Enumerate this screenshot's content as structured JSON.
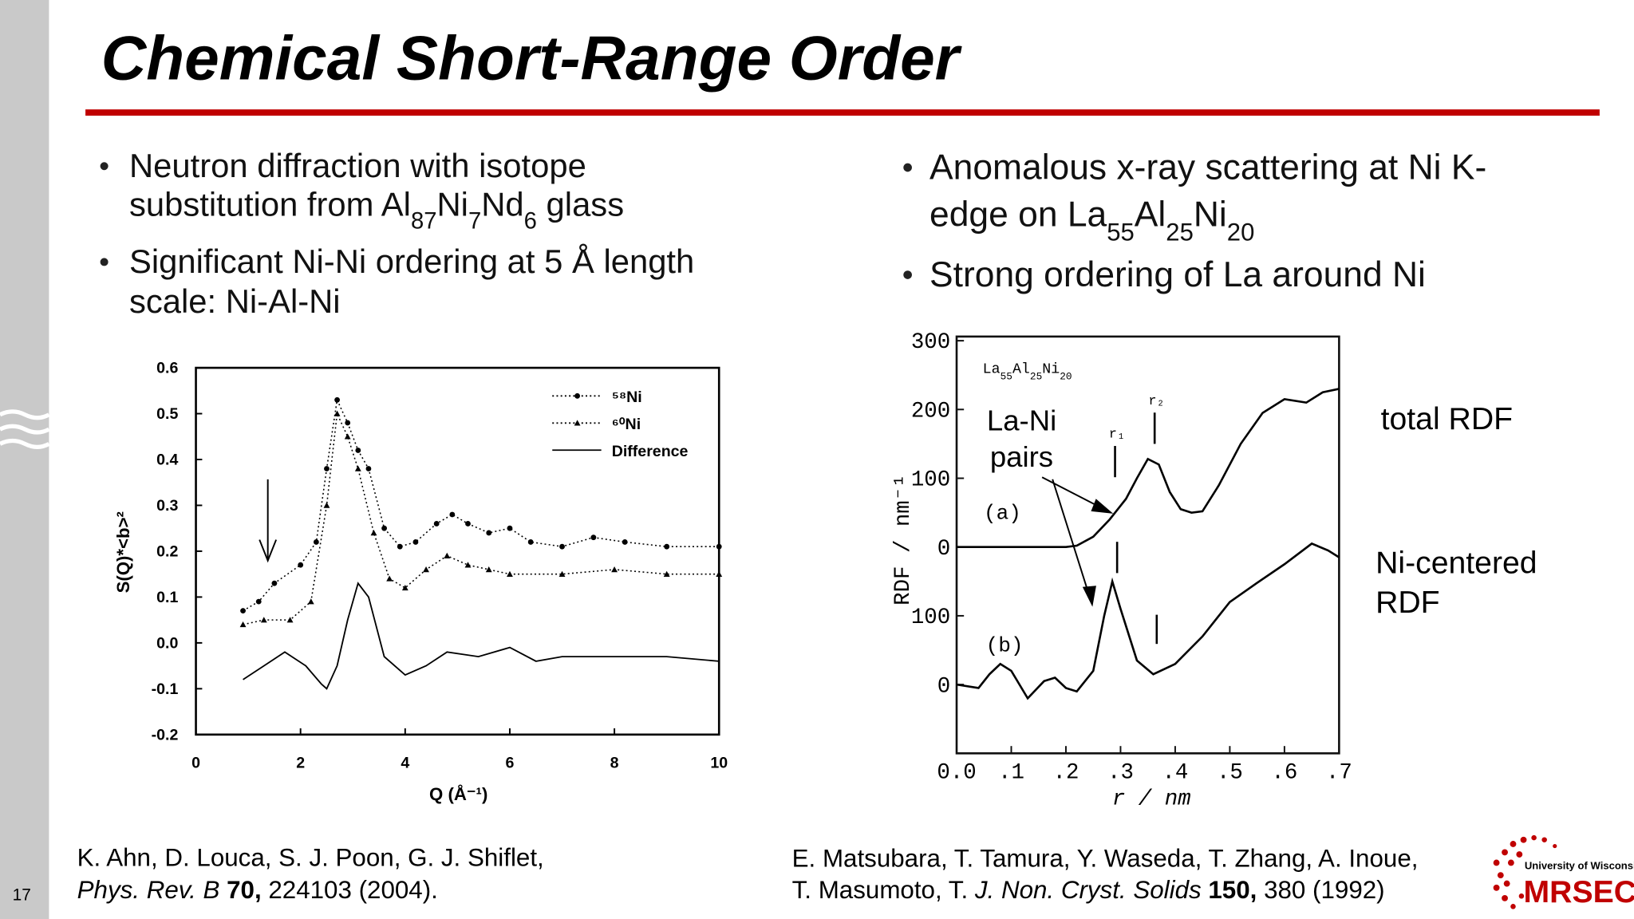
{
  "slide_number": "17",
  "title": "Chemical Short-Range Order",
  "left": {
    "bullets": [
      [
        [
          "Neutron diffraction with isotope"
        ],
        [
          "substitution from Al",
          {
            "sub": "87"
          },
          "Ni",
          {
            "sub": "7"
          },
          "Nd",
          {
            "sub": "6"
          },
          " glass"
        ]
      ],
      [
        [
          "Significant Ni-Ni ordering at 5 Å length"
        ],
        [
          "scale: Ni-Al-Ni"
        ]
      ]
    ],
    "citation": [
      [
        "K. Ahn, D. Louca, S. J. Poon, G. J. Shiflet,"
      ],
      [
        {
          "i": "Phys. Rev. B"
        },
        {
          "b": " 70,"
        },
        " 224103 (2004)."
      ]
    ]
  },
  "right": {
    "bullets": [
      [
        [
          "Anomalous x-ray scattering at Ni K-"
        ],
        [
          "edge on La",
          {
            "sub": "55"
          },
          "Al",
          {
            "sub": "25"
          },
          "Ni",
          {
            "sub": "20"
          }
        ]
      ],
      [
        [
          "Strong ordering of La around Ni"
        ]
      ]
    ],
    "callouts": {
      "la_ni": [
        "La-Ni",
        "pairs"
      ],
      "total": "total RDF",
      "ni_centered": [
        "Ni-centered",
        "RDF"
      ]
    },
    "citation": [
      [
        "E. Matsubara, T. Tamura, Y. Waseda, T. Zhang, A. Inoue,"
      ],
      [
        "T. Masumoto, T. ",
        {
          "i": "J. Non. Cryst. Solids"
        },
        {
          "b": " 150,"
        },
        " 380 (1992)"
      ]
    ]
  },
  "logo": {
    "top": "University of Wisconsin",
    "name": "MRSEC"
  },
  "chart_data": [
    {
      "type": "line",
      "xlabel": "Q (Å⁻¹)",
      "ylabel": "S(Q)*<b>²",
      "xlim": [
        0,
        10
      ],
      "xticks": [
        0,
        2,
        4,
        6,
        8,
        10
      ],
      "ylim": [
        -0.2,
        0.6
      ],
      "yticks": [
        -0.2,
        -0.1,
        {
          "value": 0,
          "label": "0.0"
        },
        0.1,
        0.2,
        0.3,
        0.4,
        0.5,
        0.6
      ],
      "series": [
        {
          "name": "⁵⁸Ni",
          "color": "#000000",
          "line": "dotted",
          "marker": "circle",
          "x": [
            0.9,
            1.2,
            1.5,
            2.0,
            2.3,
            2.5,
            2.7,
            2.9,
            3.1,
            3.3,
            3.6,
            3.9,
            4.2,
            4.6,
            4.9,
            5.2,
            5.6,
            6.0,
            6.4,
            7.0,
            7.6,
            8.2,
            9.0,
            10.0
          ],
          "values": [
            0.07,
            0.09,
            0.13,
            0.17,
            0.22,
            0.38,
            0.53,
            0.48,
            0.42,
            0.38,
            0.25,
            0.21,
            0.22,
            0.26,
            0.28,
            0.26,
            0.24,
            0.25,
            0.22,
            0.21,
            0.23,
            0.22,
            0.21,
            0.21
          ]
        },
        {
          "name": "⁶⁰Ni",
          "color": "#000000",
          "line": "dotted",
          "marker": "triangle",
          "x": [
            0.9,
            1.3,
            1.8,
            2.2,
            2.5,
            2.7,
            2.9,
            3.1,
            3.4,
            3.7,
            4.0,
            4.4,
            4.8,
            5.2,
            5.6,
            6.0,
            7.0,
            8.0,
            9.0,
            10.0
          ],
          "values": [
            0.04,
            0.05,
            0.05,
            0.09,
            0.3,
            0.5,
            0.45,
            0.38,
            0.24,
            0.14,
            0.12,
            0.16,
            0.19,
            0.17,
            0.16,
            0.15,
            0.15,
            0.16,
            0.15,
            0.15
          ]
        },
        {
          "name": "Difference",
          "color": "#000000",
          "line": "solid",
          "x": [
            0.9,
            1.3,
            1.7,
            2.1,
            2.4,
            2.5,
            2.7,
            2.9,
            3.1,
            3.3,
            3.6,
            4.0,
            4.4,
            4.8,
            5.4,
            6.0,
            6.5,
            7.0,
            8.0,
            9.0,
            10.0
          ],
          "values": [
            -0.08,
            -0.05,
            -0.02,
            -0.05,
            -0.09,
            -0.1,
            -0.05,
            0.05,
            0.13,
            0.1,
            -0.03,
            -0.07,
            -0.05,
            -0.02,
            -0.03,
            -0.01,
            -0.04,
            -0.03,
            -0.03,
            -0.03,
            -0.04
          ]
        }
      ]
    },
    {
      "type": "line",
      "xlabel": "r / nm",
      "ylabel": "RDF / nm⁻¹",
      "xlim": [
        0,
        0.7
      ],
      "xticks": [
        {
          "value": 0,
          "label": "0.0"
        },
        {
          "value": 0.1,
          "label": ".1"
        },
        {
          "value": 0.2,
          "label": ".2"
        },
        {
          "value": 0.3,
          "label": ".3"
        },
        {
          "value": 0.4,
          "label": ".4"
        },
        {
          "value": 0.5,
          "label": ".5"
        },
        {
          "value": 0.6,
          "label": ".6"
        },
        {
          "value": 0.7,
          "label": ".7"
        }
      ],
      "ylim": [
        -300,
        300
      ],
      "inset_label": [
        "La",
        {
          "sub": "55"
        },
        "Al",
        {
          "sub": "25"
        },
        "Ni",
        {
          "sub": "20"
        }
      ],
      "annotations": [
        "(a)",
        "(b)",
        "r₁",
        "r₂"
      ],
      "series": [
        {
          "color": "#000000",
          "offset": 0,
          "yticks": [
            0,
            100,
            200,
            300
          ],
          "x": [
            0.0,
            0.1,
            0.2,
            0.22,
            0.25,
            0.28,
            0.31,
            0.33,
            0.35,
            0.37,
            0.39,
            0.41,
            0.43,
            0.45,
            0.48,
            0.52,
            0.56,
            0.6,
            0.64,
            0.67,
            0.7
          ],
          "values": [
            0,
            0,
            0,
            2,
            15,
            40,
            70,
            100,
            128,
            120,
            80,
            55,
            50,
            52,
            90,
            150,
            195,
            215,
            210,
            225,
            230
          ]
        },
        {
          "color": "#000000",
          "offset": -200,
          "yticks": [
            0,
            100
          ],
          "x": [
            0.0,
            0.04,
            0.06,
            0.08,
            0.1,
            0.13,
            0.16,
            0.18,
            0.2,
            0.22,
            0.25,
            0.27,
            0.285,
            0.3,
            0.33,
            0.36,
            0.4,
            0.45,
            0.5,
            0.55,
            0.6,
            0.65,
            0.68,
            0.7
          ],
          "values": [
            0,
            -5,
            15,
            30,
            20,
            -20,
            5,
            10,
            -5,
            -10,
            20,
            100,
            150,
            110,
            35,
            15,
            30,
            70,
            120,
            148,
            175,
            205,
            195,
            185
          ]
        }
      ]
    }
  ]
}
